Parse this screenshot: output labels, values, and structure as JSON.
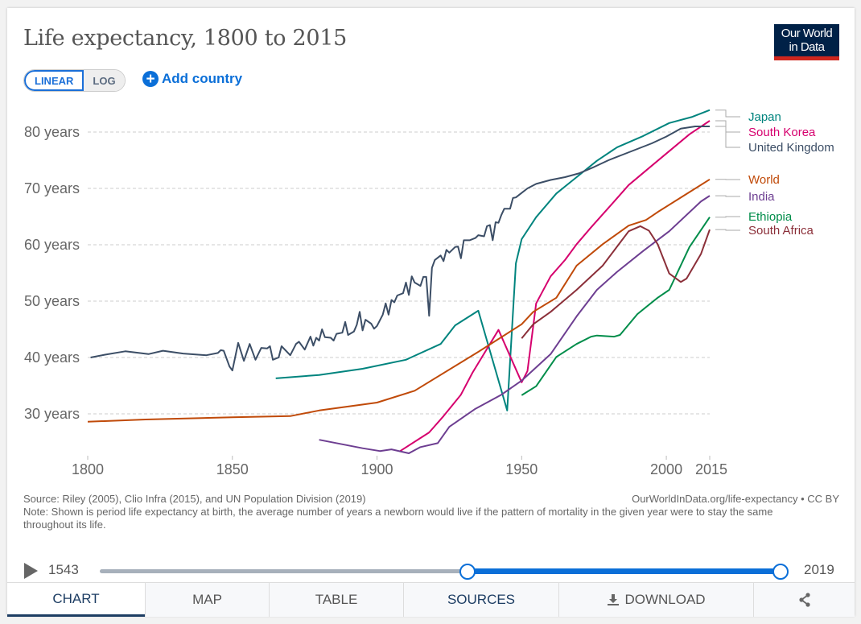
{
  "header": {
    "title": "Life expectancy, 1800 to 2015",
    "logo_text": [
      "Our World",
      "in Data"
    ]
  },
  "controls": {
    "linear_label": "LINEAR",
    "log_label": "LOG",
    "selected_scale": "linear",
    "add_country_label": "Add country",
    "add_icon": "plus-circle-icon"
  },
  "chart_data": {
    "type": "line",
    "title": "Life expectancy, 1800 to 2015",
    "xlim": [
      1800,
      2015
    ],
    "ylim": [
      22.5,
      84.5
    ],
    "x_ticks": [
      "1800",
      "1850",
      "1900",
      "1950",
      "2000",
      "2015"
    ],
    "x_tick_values": [
      1800,
      1850,
      1900,
      1950,
      2000,
      2015
    ],
    "y_ticks": [
      "30 years",
      "40 years",
      "50 years",
      "60 years",
      "70 years",
      "80 years"
    ],
    "y_tick_values": [
      30,
      40,
      50,
      60,
      70,
      80
    ],
    "grid": "horizontal dashed",
    "legend": "right, end-of-line labels",
    "series": [
      {
        "name": "Japan",
        "color": "#00847e",
        "x": [
          1865,
          1880,
          1895,
          1910,
          1922,
          1927,
          1935,
          1945,
          1948,
          1950,
          1955,
          1962,
          1969,
          1976,
          1983,
          1992,
          2001,
          2009,
          2015
        ],
        "y": [
          36.3,
          36.9,
          38.0,
          39.6,
          42.4,
          45.7,
          48.3,
          30.6,
          56.7,
          61.0,
          64.9,
          69.1,
          72.0,
          74.9,
          77.3,
          79.3,
          81.6,
          82.7,
          83.9
        ]
      },
      {
        "name": "South Korea",
        "color": "#d6006e",
        "x": [
          1908,
          1918,
          1923,
          1929,
          1933,
          1942,
          1950,
          1952,
          1955,
          1960,
          1965,
          1969,
          1974,
          1982,
          1987,
          1997,
          2008,
          2015
        ],
        "y": [
          23.4,
          26.7,
          29.6,
          33.4,
          37.3,
          44.9,
          35.6,
          37.6,
          49.6,
          54.4,
          57.3,
          60.1,
          63.1,
          67.7,
          70.6,
          74.9,
          79.6,
          82.0
        ]
      },
      {
        "name": "United Kingdom",
        "color": "#3c4e66",
        "x": [
          1801,
          1806,
          1813,
          1821,
          1826,
          1833,
          1841,
          1845,
          1846,
          1847,
          1849,
          1850,
          1852,
          1854,
          1856,
          1858,
          1860,
          1862,
          1863,
          1864,
          1866,
          1867,
          1870,
          1872,
          1873,
          1875,
          1877,
          1878,
          1879,
          1880,
          1881,
          1882,
          1884,
          1885,
          1886,
          1888,
          1889,
          1890,
          1892,
          1893,
          1894,
          1895,
          1896,
          1898,
          1899,
          1900,
          1902,
          1903,
          1904,
          1905,
          1906,
          1907,
          1909,
          1910,
          1911,
          1912,
          1913,
          1915,
          1916,
          1917,
          1918,
          1919,
          1920,
          1922,
          1923,
          1924,
          1925,
          1926,
          1927,
          1928,
          1929,
          1930,
          1932,
          1934,
          1935,
          1937,
          1938,
          1939,
          1940,
          1941,
          1942,
          1943,
          1944,
          1946,
          1947,
          1948,
          1950,
          1952,
          1955,
          1960,
          1965,
          1970,
          1975,
          1980,
          1985,
          1990,
          1995,
          2000,
          2005,
          2010,
          2015
        ],
        "y": [
          40.0,
          40.5,
          41.1,
          40.6,
          41.2,
          40.7,
          40.4,
          40.8,
          41.3,
          41.2,
          38.4,
          37.7,
          42.6,
          39.4,
          42.4,
          39.6,
          41.7,
          41.6,
          42.0,
          39.6,
          40.0,
          42.0,
          40.4,
          42.4,
          42.8,
          41.4,
          43.7,
          42.1,
          43.5,
          43.0,
          45.0,
          43.6,
          43.5,
          43.0,
          44.2,
          44.4,
          46.3,
          44.0,
          44.6,
          45.8,
          48.1,
          44.8,
          46.7,
          46.0,
          45.1,
          45.6,
          47.6,
          49.6,
          47.6,
          50.2,
          49.8,
          51.0,
          51.4,
          53.3,
          51.1,
          54.4,
          53.3,
          52.7,
          54.3,
          54.3,
          47.4,
          55.9,
          57.3,
          58.1,
          57.1,
          59.1,
          58.6,
          59.1,
          59.6,
          59.7,
          57.6,
          60.8,
          60.8,
          61.2,
          61.7,
          61.5,
          63.3,
          63.5,
          60.8,
          64.0,
          63.9,
          65.3,
          66.4,
          66.4,
          68.3,
          68.4,
          69.2,
          70.0,
          70.8,
          71.5,
          72.0,
          72.7,
          73.8,
          75.0,
          76.0,
          77.0,
          78.0,
          79.2,
          80.6,
          81.0,
          81.0
        ]
      },
      {
        "name": "World",
        "color": "#c04a09",
        "x": [
          1800,
          1820,
          1850,
          1870,
          1880,
          1900,
          1913,
          1935,
          1950,
          1954,
          1962,
          1969,
          1978,
          1987,
          1993,
          1997,
          2006,
          2015
        ],
        "y": [
          28.6,
          29.0,
          29.4,
          29.6,
          30.6,
          32.0,
          34.1,
          41.0,
          45.9,
          48.1,
          50.6,
          56.3,
          60.1,
          63.4,
          64.4,
          65.8,
          68.7,
          71.6
        ]
      },
      {
        "name": "India",
        "color": "#6d3e91",
        "x": [
          1880,
          1895,
          1901,
          1905,
          1911,
          1915,
          1921,
          1925,
          1934,
          1943,
          1950,
          1960,
          1969,
          1976,
          1983,
          1992,
          2001,
          2012,
          2015
        ],
        "y": [
          25.4,
          23.9,
          23.4,
          23.7,
          23.0,
          24.1,
          24.8,
          27.7,
          30.9,
          33.4,
          35.9,
          40.6,
          47.3,
          52.0,
          55.2,
          58.9,
          62.4,
          67.7,
          68.7
        ]
      },
      {
        "name": "Ethiopia",
        "color": "#008d4a",
        "x": [
          1950,
          1955,
          1962,
          1969,
          1974,
          1976,
          1982,
          1984,
          1990,
          1997,
          2001,
          2008,
          2015
        ],
        "y": [
          33.3,
          34.9,
          40.1,
          42.4,
          43.7,
          43.9,
          43.7,
          44.0,
          47.7,
          50.6,
          52.0,
          59.6,
          64.9
        ]
      },
      {
        "name": "South Africa",
        "color": "#8b2f39",
        "x": [
          1950,
          1954,
          1960,
          1969,
          1978,
          1987,
          1991,
          1994,
          1997,
          2001,
          2005,
          2007,
          2012,
          2015
        ],
        "y": [
          43.4,
          45.9,
          48.1,
          52.0,
          56.3,
          62.4,
          63.3,
          62.5,
          60.1,
          54.9,
          53.4,
          54.0,
          58.4,
          62.7
        ]
      }
    ]
  },
  "footer": {
    "source": "Source: Riley (2005), Clio Infra (2015), and UN Population Division (2019)",
    "url": "OurWorldInData.org/life-expectancy • CC BY",
    "note": "Note: Shown is period life expectancy at birth, the average number of years a newborn would live if the pattern of mortality in the given year were to stay the same throughout its life."
  },
  "timeline": {
    "start_label": "1543",
    "end_label": "2019",
    "min": 1543,
    "max": 2019,
    "selected_start": 1800,
    "selected_end": 2019
  },
  "tabs": [
    {
      "label": "CHART",
      "active": true
    },
    {
      "label": "MAP"
    },
    {
      "label": "TABLE"
    },
    {
      "label": "SOURCES"
    },
    {
      "label": "DOWNLOAD",
      "icon": "download-icon"
    },
    {
      "label": "",
      "icon": "share-icon"
    }
  ],
  "accent_color": "#0b6fd8"
}
